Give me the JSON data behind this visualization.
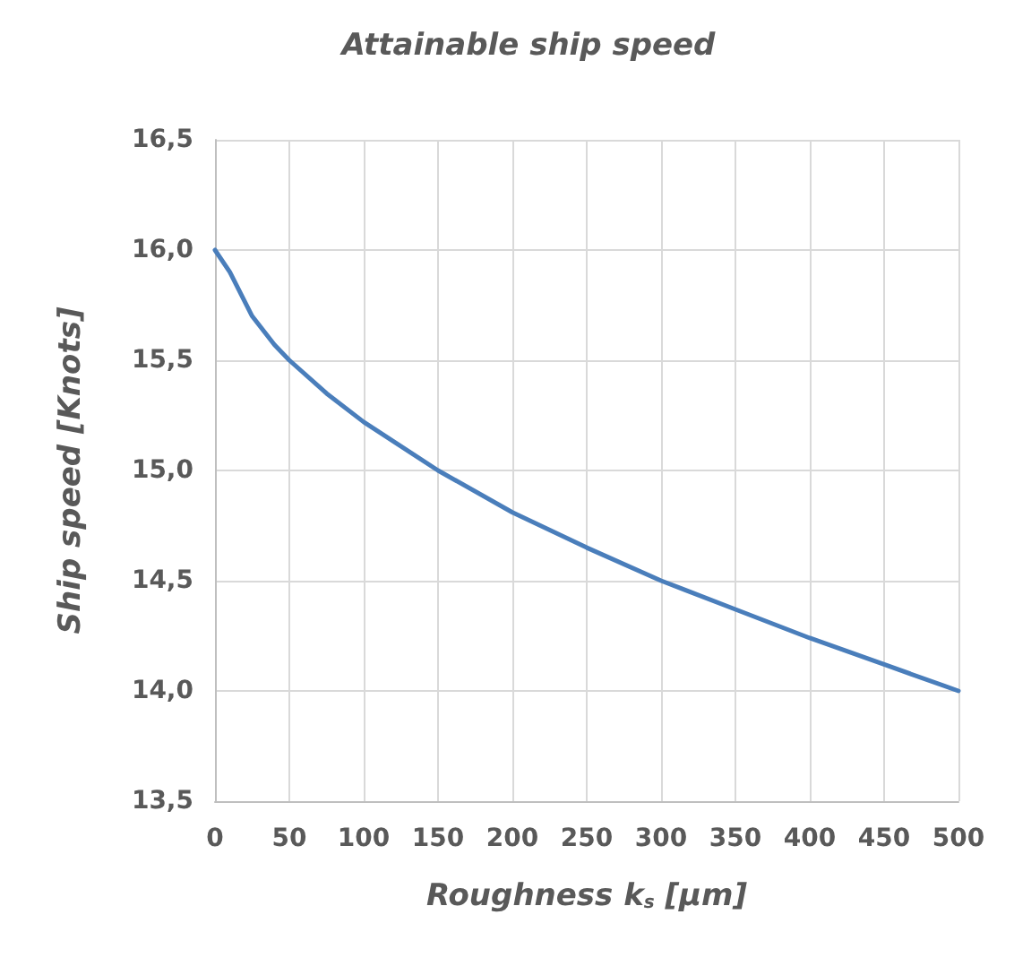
{
  "chart_data": {
    "type": "line",
    "title": "Attainable ship speed",
    "xlabel": "Roughness k$_{s}$ [μm]",
    "ylabel": "Ship speed [Knots]",
    "x": [
      0,
      10,
      25,
      40,
      50,
      75,
      100,
      150,
      200,
      250,
      300,
      350,
      400,
      450,
      500
    ],
    "series": [
      {
        "color": "#4a7ebb",
        "values": [
          16.0,
          15.9,
          15.7,
          15.57,
          15.5,
          15.35,
          15.22,
          15.0,
          14.81,
          14.65,
          14.5,
          14.37,
          14.24,
          14.12,
          14.0
        ]
      }
    ],
    "xlim": [
      0,
      500
    ],
    "xticks": [
      0,
      50,
      100,
      150,
      200,
      250,
      300,
      350,
      400,
      450,
      500
    ],
    "ylim": [
      13.5,
      16.5
    ],
    "yticks": [
      {
        "value": 13.5,
        "label": "13,5"
      },
      {
        "value": 14,
        "label": "14,0"
      },
      {
        "value": 14.5,
        "label": "14,5"
      },
      {
        "value": 15,
        "label": "15,0"
      },
      {
        "value": 15.5,
        "label": "15,5"
      },
      {
        "value": 16,
        "label": "16,0"
      },
      {
        "value": 16.5,
        "label": "16,5"
      }
    ],
    "grid": true,
    "marker": "none",
    "line_style": "solid"
  }
}
